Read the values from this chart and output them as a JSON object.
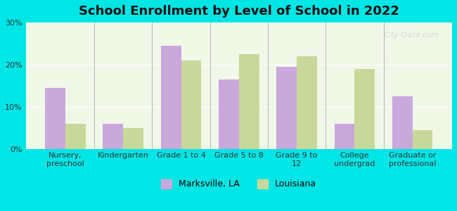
{
  "title": "School Enrollment by Level of School in 2022",
  "categories": [
    "Nursery,\npreschool",
    "Kindergarten",
    "Grade 1 to 4",
    "Grade 5 to 8",
    "Grade 9 to\n12",
    "College\nundergrad",
    "Graduate or\nprofessional"
  ],
  "marksville": [
    14.5,
    6.0,
    24.5,
    16.5,
    19.5,
    6.0,
    12.5
  ],
  "louisiana": [
    6.0,
    5.0,
    21.0,
    22.5,
    22.0,
    19.0,
    4.5
  ],
  "marksville_color": "#c9a8dc",
  "louisiana_color": "#c8d89a",
  "background_outer": "#00e5e5",
  "background_inner": "#f0f8e8",
  "ylim": [
    0,
    30
  ],
  "yticks": [
    0,
    10,
    20,
    30
  ],
  "bar_width": 0.35,
  "legend_labels": [
    "Marksville, LA",
    "Louisiana"
  ],
  "watermark": "City-Data.com"
}
